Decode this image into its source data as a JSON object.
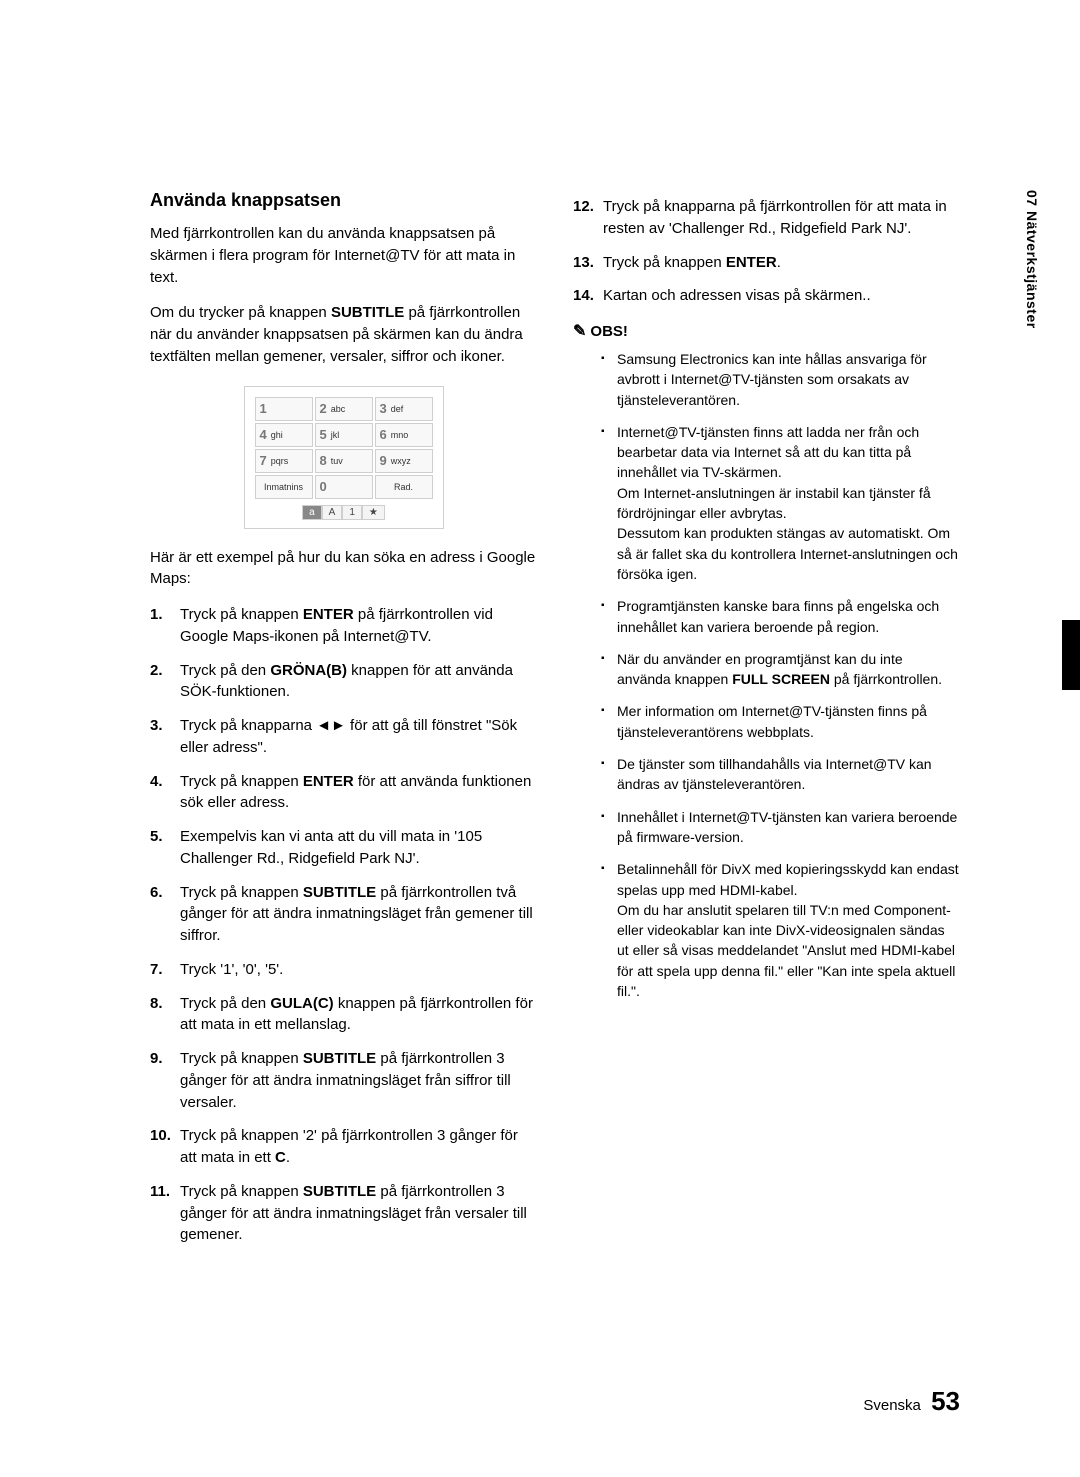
{
  "sideTab": "07  Nätverkstjänster",
  "left": {
    "title": "Använda knappsatsen",
    "p1_a": "Med fjärrkontrollen kan du använda knappsatsen på skärmen i flera program för Internet@TV för att mata in text.",
    "p2_a": "Om du trycker på knappen ",
    "p2_bold": "SUBTITLE",
    "p2_b": " på fjärrkontrollen när du använder knappsatsen på skärmen kan du ändra textfälten mellan gemener, versaler, siffror och ikoner.",
    "p3": "Här är ett exempel på hur du kan söka en adress i Google Maps:"
  },
  "keypad": {
    "r1": [
      {
        "n": "1",
        "t": ""
      },
      {
        "n": "2",
        "t": "abc"
      },
      {
        "n": "3",
        "t": "def"
      }
    ],
    "r2": [
      {
        "n": "4",
        "t": "ghi"
      },
      {
        "n": "5",
        "t": "jkl"
      },
      {
        "n": "6",
        "t": "mno"
      }
    ],
    "r3": [
      {
        "n": "7",
        "t": "pqrs"
      },
      {
        "n": "8",
        "t": "tuv"
      },
      {
        "n": "9",
        "t": "wxyz"
      }
    ],
    "r4": [
      {
        "n": "",
        "t": "Inmatnins"
      },
      {
        "n": "0",
        "t": ""
      },
      {
        "n": "",
        "t": "Rad."
      }
    ],
    "modes": [
      "a",
      "A",
      "1",
      "★"
    ]
  },
  "steps": {
    "s1_a": "Tryck på knappen ",
    "s1_b": "ENTER",
    "s1_c": " på fjärrkontrollen vid Google Maps-ikonen på Internet@TV.",
    "s2_a": "Tryck på den ",
    "s2_b": "GRÖNA(B)",
    "s2_c": " knappen för att använda SÖK-funktionen.",
    "s3_a": "Tryck på knapparna ",
    "s3_b": "◄►",
    "s3_c": " för att gå till fönstret \"Sök eller adress\".",
    "s4_a": "Tryck på knappen ",
    "s4_b": "ENTER",
    "s4_c": " för att använda funktionen sök eller adress.",
    "s5": "Exempelvis kan vi anta att du vill mata in '105 Challenger Rd., Ridgefield Park NJ'.",
    "s6_a": "Tryck på knappen ",
    "s6_b": "SUBTITLE",
    "s6_c": " på fjärrkontrollen två gånger för att ändra inmatningsläget från gemener till siffror.",
    "s7": "Tryck '1', '0', '5'.",
    "s8_a": "Tryck på den ",
    "s8_b": "GULA(C)",
    "s8_c": " knappen på fjärrkontrollen för att mata in ett mellanslag.",
    "s9_a": "Tryck på knappen ",
    "s9_b": "SUBTITLE",
    "s9_c": " på fjärrkontrollen 3 gånger för att ändra inmatningsläget från siffror till versaler.",
    "s10_a": "Tryck på knappen '2' på fjärrkontrollen 3 gånger för att mata in ett ",
    "s10_b": "C",
    "s10_c": ".",
    "s11_a": "Tryck på knappen ",
    "s11_b": "SUBTITLE",
    "s11_c": " på fjärrkontrollen 3 gånger för att ändra inmatningsläget från versaler till gemener.",
    "s12": "Tryck på knapparna på fjärrkontrollen för att mata in resten av 'Challenger Rd., Ridgefield Park NJ'.",
    "s13_a": "Tryck på knappen ",
    "s13_b": "ENTER",
    "s13_c": ".",
    "s14": "Kartan och adressen visas på skärmen.."
  },
  "obsLabel": "OBS!",
  "notes": {
    "n1": "Samsung Electronics kan inte hållas ansvariga för avbrott i Internet@TV-tjänsten som orsakats av tjänsteleverantören.",
    "n2": "Internet@TV-tjänsten finns att ladda ner från och bearbetar data via Internet så att du kan titta på innehållet via TV-skärmen.\nOm Internet-anslutningen är instabil kan tjänster få fördröjningar eller avbrytas.\nDessutom kan produkten stängas av automatiskt. Om så är fallet ska du kontrollera Internet-anslutningen och försöka igen.",
    "n3": "Programtjänsten kanske bara finns på engelska och innehållet kan variera beroende på region.",
    "n4_a": "När du använder en programtjänst kan du inte använda knappen ",
    "n4_b": "FULL SCREEN",
    "n4_c": " på fjärrkontrollen.",
    "n5": "Mer information om Internet@TV-tjänsten finns på tjänsteleverantörens webbplats.",
    "n6": "De tjänster som tillhandahålls via Internet@TV kan ändras av tjänsteleverantören.",
    "n7": "Innehållet i Internet@TV-tjänsten kan variera beroende på firmware-version.",
    "n8": "Betalinnehåll för DivX med kopieringsskydd kan endast spelas upp med HDMI-kabel.\nOm du har anslutit spelaren till TV:n med Component- eller videokablar kan inte DivX-videosignalen sändas ut eller så visas meddelandet \"Anslut med HDMI-kabel för att spela upp denna fil.\" eller \"Kan inte spela aktuell fil.\"."
  },
  "footer": {
    "lang": "Svenska",
    "page": "53"
  }
}
